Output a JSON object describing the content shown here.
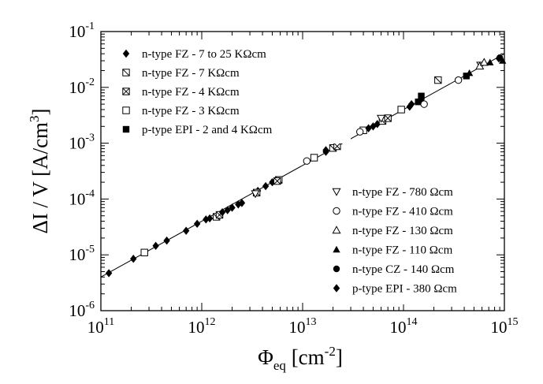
{
  "chart_data": {
    "type": "scatter",
    "title": "",
    "xlabel": {
      "main": "Φ",
      "sub": "eq",
      "rest": " [cm",
      "sup": "-2",
      "end": "]"
    },
    "ylabel": {
      "main": "ΔI / V  [A/cm",
      "sup": "3",
      "end": "]"
    },
    "x_scale": "log",
    "y_scale": "log",
    "xlim": [
      100000000000.0,
      1000000000000000.0
    ],
    "ylim": [
      1e-06,
      0.1
    ],
    "x_ticks": [
      {
        "base": "10",
        "exp": "11",
        "value": 100000000000.0
      },
      {
        "base": "10",
        "exp": "12",
        "value": 1000000000000.0
      },
      {
        "base": "10",
        "exp": "13",
        "value": 10000000000000.0
      },
      {
        "base": "10",
        "exp": "14",
        "value": 100000000000000.0
      },
      {
        "base": "10",
        "exp": "15",
        "value": 1000000000000000.0
      }
    ],
    "y_ticks": [
      {
        "base": "10",
        "exp": "-6",
        "value": 1e-06
      },
      {
        "base": "10",
        "exp": "-5",
        "value": 1e-05
      },
      {
        "base": "10",
        "exp": "-4",
        "value": 0.0001
      },
      {
        "base": "10",
        "exp": "-3",
        "value": 0.001
      },
      {
        "base": "10",
        "exp": "-2",
        "value": 0.01
      },
      {
        "base": "10",
        "exp": "-1",
        "value": 0.1
      }
    ],
    "grid": false,
    "legend_placement": [
      "top-left",
      "bottom-right"
    ],
    "fit_line": {
      "x": [
        100000000000.0,
        1000000000000000.0
      ],
      "y": [
        4e-06,
        0.04
      ]
    },
    "series": [
      {
        "name": "n-type FZ - 7 to 25 KΩcm",
        "marker": "diamond-filled",
        "legend": "top",
        "points": [
          [
            3600000000000.0,
            0.00014
          ],
          [
            4300000000000.0,
            0.00017
          ],
          [
            5000000000000.0,
            0.0002
          ],
          [
            17000000000000.0,
            0.00075
          ],
          [
            21000000000000.0,
            0.00085
          ],
          [
            50000000000000.0,
            0.002
          ],
          [
            55000000000000.0,
            0.0022
          ],
          [
            120000000000000.0,
            0.005
          ],
          [
            150000000000000.0,
            0.006
          ],
          [
            880000000000000.0,
            0.033
          ]
        ]
      },
      {
        "name": "n-type FZ - 7 KΩcm",
        "marker": "square-slash",
        "legend": "top",
        "points": [
          [
            1400000000000.0,
            4.8e-05
          ],
          [
            3500000000000.0,
            0.00013
          ],
          [
            5800000000000.0,
            0.00022
          ],
          [
            20000000000000.0,
            0.00082
          ],
          [
            62000000000000.0,
            0.0025
          ],
          [
            220000000000000.0,
            0.0135
          ]
        ]
      },
      {
        "name": "n-type FZ - 4 KΩcm",
        "marker": "square-cross",
        "legend": "top",
        "points": [
          [
            1500000000000.0,
            5.2e-05
          ],
          [
            5600000000000.0,
            0.00021
          ],
          [
            22000000000000.0,
            0.00088
          ],
          [
            70000000000000.0,
            0.0028
          ]
        ]
      },
      {
        "name": "n-type FZ - 3 KΩcm",
        "marker": "square-open",
        "legend": "top",
        "points": [
          [
            270000000000.0,
            1.1e-05
          ],
          [
            13000000000000.0,
            0.00055
          ],
          [
            40000000000000.0,
            0.0017
          ],
          [
            95000000000000.0,
            0.004
          ]
        ]
      },
      {
        "name": "p-type EPI - 2 and 4 KΩcm",
        "marker": "square-filled",
        "legend": "top",
        "points": [
          [
            140000000000000.0,
            0.0055
          ],
          [
            150000000000000.0,
            0.007
          ],
          [
            420000000000000.0,
            0.016
          ]
        ]
      },
      {
        "name": "n-type FZ - 780 Ωcm",
        "marker": "triangle-down-open",
        "legend": "bottom",
        "points": [
          [
            3400000000000.0,
            0.000125
          ],
          [
            60000000000000.0,
            0.0028
          ],
          [
            580000000000000.0,
            0.025
          ]
        ]
      },
      {
        "name": "n-type FZ - 410 Ωcm",
        "marker": "circle-open",
        "legend": "bottom",
        "points": [
          [
            11000000000000.0,
            0.00048
          ],
          [
            37000000000000.0,
            0.0016
          ],
          [
            160000000000000.0,
            0.005
          ],
          [
            350000000000000.0,
            0.0135
          ]
        ]
      },
      {
        "name": "n-type FZ - 130 Ωcm",
        "marker": "triangle-up-open",
        "legend": "bottom",
        "points": [
          [
            570000000000000.0,
            0.024
          ],
          [
            630000000000000.0,
            0.028
          ]
        ]
      },
      {
        "name": "n-type FZ - 110 Ωcm",
        "marker": "triangle-up-filled",
        "legend": "bottom",
        "points": [
          [
            450000000000000.0,
            0.018
          ],
          [
            720000000000000.0,
            0.028
          ],
          [
            960000000000000.0,
            0.03
          ]
        ]
      },
      {
        "name": "n-type CZ - 140 Ωcm",
        "marker": "circle-filled",
        "legend": "bottom",
        "points": [
          [
            900000000000000.0,
            0.034
          ]
        ]
      },
      {
        "name": "p-type EPI - 380 Ωcm",
        "marker": "diamond-filled",
        "legend": "bottom",
        "points": [
          [
            120000000000.0,
            4.7e-06
          ],
          [
            210000000000.0,
            8.5e-06
          ],
          [
            350000000000.0,
            1.45e-05
          ],
          [
            450000000000.0,
            1.8e-05
          ],
          [
            700000000000.0,
            2.7e-05
          ],
          [
            900000000000.0,
            3.6e-05
          ],
          [
            1100000000000.0,
            4.3e-05
          ],
          [
            1200000000000.0,
            4.5e-05
          ],
          [
            1600000000000.0,
            5.8e-05
          ],
          [
            1800000000000.0,
            6.3e-05
          ],
          [
            2000000000000.0,
            7e-05
          ],
          [
            2300000000000.0,
            8e-05
          ],
          [
            2500000000000.0,
            8.5e-05
          ],
          [
            17000000000000.0,
            0.0007
          ],
          [
            45000000000000.0,
            0.00185
          ],
          [
            115000000000000.0,
            0.0045
          ]
        ]
      }
    ]
  }
}
